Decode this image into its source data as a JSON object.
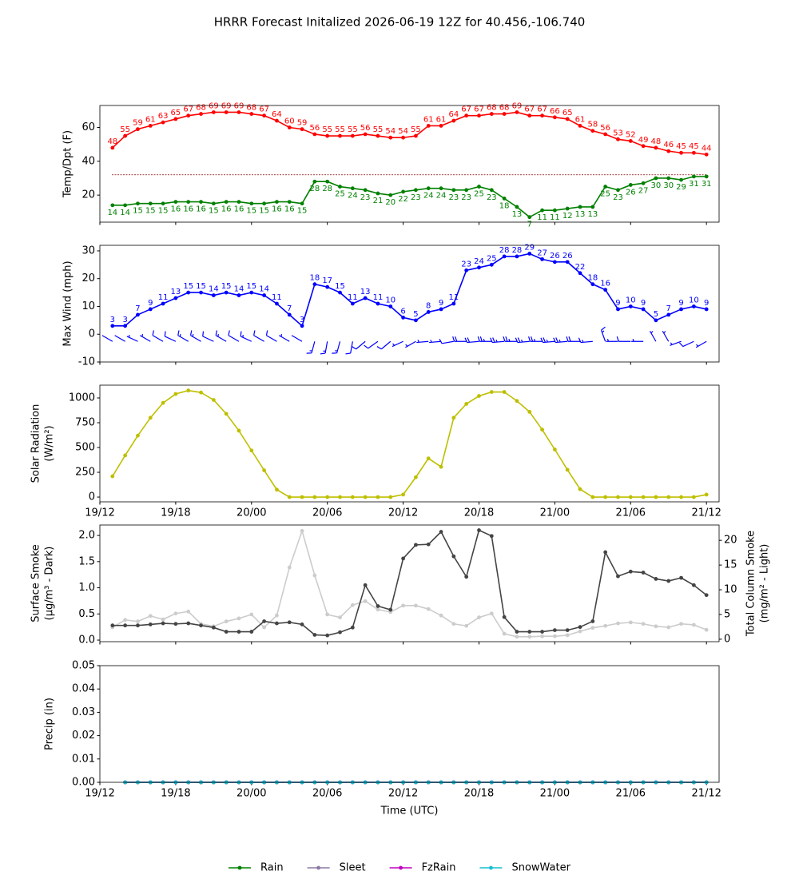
{
  "title": "HRRR Forecast Initalized 2026-06-19 12Z for 40.456,-106.740",
  "xlabel": "Time (UTC)",
  "x": [
    "19/13",
    "19/14",
    "19/15",
    "19/16",
    "19/17",
    "19/18",
    "19/19",
    "19/20",
    "19/21",
    "19/22",
    "19/23",
    "20/00",
    "20/01",
    "20/02",
    "20/03",
    "20/04",
    "20/05",
    "20/06",
    "20/07",
    "20/08",
    "20/09",
    "20/10",
    "20/11",
    "20/12",
    "20/13",
    "20/14",
    "20/15",
    "20/16",
    "20/17",
    "20/18",
    "20/19",
    "20/20",
    "20/21",
    "20/22",
    "20/23",
    "21/00",
    "21/01",
    "21/02",
    "21/03",
    "21/04",
    "21/05",
    "21/06",
    "21/07",
    "21/08",
    "21/09",
    "21/10",
    "21/11",
    "21/12"
  ],
  "xlim": [
    "19/12",
    "21/13"
  ],
  "xticks": [
    "19/12",
    "19/18",
    "20/00",
    "20/06",
    "20/12",
    "20/18",
    "21/00",
    "21/06",
    "21/12"
  ],
  "chart_data": [
    {
      "type": "line",
      "ylabel": [
        "Temp/Dpt (F)"
      ],
      "ylim": [
        4,
        73
      ],
      "yticks": [
        20,
        40,
        60
      ],
      "xticklabels": false,
      "reference_line": {
        "value": 32,
        "color": "#8b0000"
      },
      "series": [
        {
          "name": "Temp",
          "color": "#ff0000",
          "label_position": "above",
          "values": [
            48,
            55,
            59,
            61,
            63,
            65,
            67,
            68,
            69,
            69,
            69,
            68,
            67,
            64,
            60,
            59,
            56,
            55,
            55,
            55,
            56,
            55,
            54,
            54,
            55,
            61,
            61,
            64,
            67,
            67,
            68,
            68,
            69,
            67,
            67,
            66,
            65,
            61,
            58,
            56,
            53,
            52,
            49,
            48,
            46,
            45,
            45,
            44
          ]
        },
        {
          "name": "Dpt",
          "color": "#008000",
          "label_position": "below",
          "values": [
            14,
            14,
            15,
            15,
            15,
            16,
            16,
            16,
            15,
            16,
            16,
            15,
            15,
            16,
            16,
            15,
            28,
            28,
            25,
            24,
            23,
            21,
            20,
            22,
            23,
            24,
            24,
            23,
            23,
            25,
            23,
            18,
            13,
            7,
            11,
            11,
            12,
            13,
            13,
            25,
            23,
            26,
            27,
            30,
            30,
            29,
            31,
            31
          ]
        }
      ]
    },
    {
      "type": "line",
      "ylabel": [
        "Max Wind (mph)"
      ],
      "ylim": [
        -10,
        32
      ],
      "yticks": [
        -10,
        0,
        10,
        20,
        30
      ],
      "xticklabels": false,
      "wind_dir": [
        300,
        300,
        295,
        300,
        300,
        295,
        300,
        300,
        295,
        300,
        300,
        295,
        300,
        300,
        300,
        300,
        195,
        190,
        195,
        190,
        230,
        235,
        230,
        245,
        240,
        265,
        265,
        260,
        270,
        265,
        270,
        265,
        270,
        265,
        270,
        265,
        265,
        270,
        265,
        340,
        270,
        270,
        270,
        330,
        330,
        250,
        245,
        240
      ],
      "series": [
        {
          "name": "Max Wind",
          "color": "#0000ff",
          "label_position": "above",
          "values": [
            3,
            3,
            7,
            9,
            11,
            13,
            15,
            15,
            14,
            15,
            14,
            15,
            14,
            11,
            7,
            3,
            18,
            17,
            15,
            11,
            13,
            11,
            10,
            6,
            5,
            8,
            9,
            11,
            23,
            24,
            25,
            28,
            28,
            29,
            27,
            26,
            26,
            22,
            18,
            16,
            9,
            10,
            9,
            5,
            7,
            9,
            10,
            9
          ]
        }
      ]
    },
    {
      "type": "line",
      "ylabel": [
        "Solar Radiation",
        "(W/m²)"
      ],
      "ylim": [
        -48,
        1129
      ],
      "yticks": [
        0,
        250,
        500,
        750,
        1000
      ],
      "xticklabels": true,
      "series": [
        {
          "name": "Solar Radiation",
          "color": "#bfbf00",
          "values": [
            210,
            420,
            620,
            800,
            950,
            1040,
            1075,
            1055,
            980,
            840,
            670,
            470,
            270,
            75,
            0,
            0,
            0,
            0,
            0,
            0,
            0,
            0,
            0,
            25,
            200,
            390,
            305,
            800,
            940,
            1020,
            1060,
            1060,
            970,
            860,
            680,
            480,
            275,
            80,
            0,
            0,
            0,
            0,
            0,
            0,
            0,
            0,
            0,
            25
          ]
        }
      ]
    },
    {
      "type": "line",
      "ylabel": [
        "Surface Smoke",
        "(μg/m³ - Dark)"
      ],
      "y2label": [
        "Total Column Smoke",
        "(mg/m² - Light)"
      ],
      "ylim": [
        -0.03,
        2.2
      ],
      "y2lim": [
        -0.5,
        23.1
      ],
      "xticklabels": false,
      "yticks": [
        {
          "value": 0,
          "label": "0.0"
        },
        {
          "value": 0.5,
          "label": "0.5"
        },
        {
          "value": 1,
          "label": "1.0"
        },
        {
          "value": 1.5,
          "label": "1.5"
        },
        {
          "value": 2,
          "label": "2.0"
        }
      ],
      "y2ticks": [
        0,
        5,
        10,
        15,
        20
      ],
      "series": [
        {
          "name": "Total Column Smoke",
          "color": "#cccccc",
          "axis": "y2",
          "values": [
            2.4,
            3.9,
            3.6,
            4.7,
            4.0,
            5.2,
            5.6,
            3.1,
            2.6,
            3.6,
            4.2,
            5.0,
            2.4,
            4.8,
            14.5,
            21.9,
            12.9,
            5.0,
            4.4,
            6.9,
            7.7,
            6.0,
            5.5,
            6.8,
            6.8,
            6.1,
            4.8,
            3.1,
            2.7,
            4.4,
            5.2,
            1.1,
            0.5,
            0.5,
            0.6,
            0.6,
            0.8,
            1.6,
            2.3,
            2.7,
            3.2,
            3.4,
            3.1,
            2.6,
            2.4,
            3.1,
            2.9,
            1.9
          ]
        },
        {
          "name": "Surface Smoke",
          "color": "#444444",
          "values": [
            0.28,
            0.28,
            0.28,
            0.3,
            0.32,
            0.31,
            0.32,
            0.28,
            0.24,
            0.16,
            0.16,
            0.16,
            0.36,
            0.32,
            0.34,
            0.3,
            0.1,
            0.09,
            0.15,
            0.24,
            1.05,
            0.65,
            0.58,
            1.56,
            1.82,
            1.83,
            2.07,
            1.6,
            1.21,
            2.1,
            1.99,
            0.44,
            0.16,
            0.16,
            0.16,
            0.19,
            0.19,
            0.25,
            0.36,
            1.68,
            1.22,
            1.31,
            1.29,
            1.17,
            1.13,
            1.19,
            1.05,
            0.86
          ]
        }
      ]
    },
    {
      "type": "line",
      "ylabel": [
        "Precip (in)"
      ],
      "ylim": [
        0,
        0.05
      ],
      "xticklabels": true,
      "legend": "bottom",
      "yticks": [
        {
          "value": 0,
          "label": "0.00"
        },
        {
          "value": 0.01,
          "label": "0.01"
        },
        {
          "value": 0.02,
          "label": "0.02"
        },
        {
          "value": 0.03,
          "label": "0.03"
        },
        {
          "value": 0.04,
          "label": "0.04"
        },
        {
          "value": 0.05,
          "label": "0.05"
        }
      ],
      "series": [
        {
          "name": "Rain",
          "color": "#008000",
          "values": [
            null,
            0,
            0,
            0,
            0,
            0,
            0,
            0,
            0,
            0,
            0,
            0,
            0,
            0,
            0,
            0,
            0,
            0,
            0,
            0,
            0,
            0,
            0,
            0,
            0,
            0,
            0,
            0,
            0,
            0,
            0,
            0,
            0,
            0,
            0,
            0,
            0,
            0,
            0,
            0,
            0,
            0,
            0,
            0,
            0,
            0,
            0,
            0
          ]
        },
        {
          "name": "Sleet",
          "color": "#8c7aa3",
          "values": [
            null,
            0,
            0,
            0,
            0,
            0,
            0,
            0,
            0,
            0,
            0,
            0,
            0,
            0,
            0,
            0,
            0,
            0,
            0,
            0,
            0,
            0,
            0,
            0,
            0,
            0,
            0,
            0,
            0,
            0,
            0,
            0,
            0,
            0,
            0,
            0,
            0,
            0,
            0,
            0,
            0,
            0,
            0,
            0,
            0,
            0,
            0,
            0
          ]
        },
        {
          "name": "FzRain",
          "color": "#bf00bf",
          "values": [
            null,
            0,
            0,
            0,
            0,
            0,
            0,
            0,
            0,
            0,
            0,
            0,
            0,
            0,
            0,
            0,
            0,
            0,
            0,
            0,
            0,
            0,
            0,
            0,
            0,
            0,
            0,
            0,
            0,
            0,
            0,
            0,
            0,
            0,
            0,
            0,
            0,
            0,
            0,
            0,
            0,
            0,
            0,
            0,
            0,
            0,
            0,
            0
          ]
        },
        {
          "name": "SnowWater",
          "color": "#17becf",
          "values": [
            null,
            0,
            0,
            0,
            0,
            0,
            0,
            0,
            0,
            0,
            0,
            0,
            0,
            0,
            0,
            0,
            0,
            0,
            0,
            0,
            0,
            0,
            0,
            0,
            0,
            0,
            0,
            0,
            0,
            0,
            0,
            0,
            0,
            0,
            0,
            0,
            0,
            0,
            0,
            0,
            0,
            0,
            0,
            0,
            0,
            0,
            0,
            0
          ]
        }
      ]
    }
  ]
}
